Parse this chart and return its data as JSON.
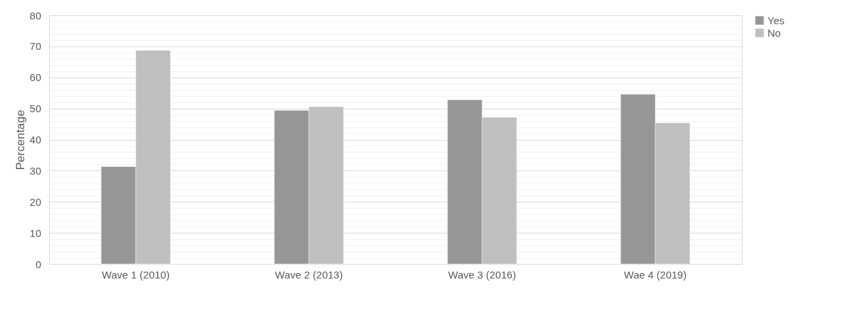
{
  "chart_data": {
    "type": "bar",
    "ylabel": "Percentage",
    "categories": [
      "Wave 1 (2010)",
      "Wave 2 (2013)",
      "Wave 3 (2016)",
      "Wae 4 (2019)"
    ],
    "series": [
      {
        "name": "Yes",
        "color": "#969696",
        "values": [
          31.3,
          49.4,
          52.8,
          54.6
        ]
      },
      {
        "name": "No",
        "color": "#bfbfbf",
        "values": [
          68.7,
          50.6,
          47.2,
          45.4
        ]
      }
    ],
    "ylim": [
      0,
      80
    ],
    "yticks": [
      0,
      {
        "value": 2,
        "label": null
      },
      {
        "value": 4,
        "label": null
      },
      {
        "value": 6,
        "label": null
      },
      {
        "value": 8,
        "label": null
      },
      10,
      {
        "value": 12,
        "label": null
      },
      {
        "value": 14,
        "label": null
      },
      {
        "value": 16,
        "label": null
      },
      {
        "value": 18,
        "label": null
      },
      20,
      {
        "value": 22,
        "label": null
      },
      {
        "value": 24,
        "label": null
      },
      {
        "value": 26,
        "label": null
      },
      {
        "value": 28,
        "label": null
      },
      30,
      {
        "value": 32,
        "label": null
      },
      {
        "value": 34,
        "label": null
      },
      {
        "value": 36,
        "label": null
      },
      {
        "value": 38,
        "label": null
      },
      40,
      {
        "value": 42,
        "label": null
      },
      {
        "value": 44,
        "label": null
      },
      {
        "value": 46,
        "label": null
      },
      {
        "value": 48,
        "label": null
      },
      50,
      {
        "value": 52,
        "label": null
      },
      {
        "value": 54,
        "label": null
      },
      {
        "value": 56,
        "label": null
      },
      {
        "value": 58,
        "label": null
      },
      60,
      {
        "value": 62,
        "label": null
      },
      {
        "value": 64,
        "label": null
      },
      {
        "value": 66,
        "label": null
      },
      {
        "value": 68,
        "label": null
      },
      70,
      {
        "value": 72,
        "label": null
      },
      {
        "value": 74,
        "label": null
      },
      {
        "value": 76,
        "label": null
      },
      {
        "value": 78,
        "label": null
      },
      80
    ],
    "grid": "y",
    "legend": "right"
  }
}
